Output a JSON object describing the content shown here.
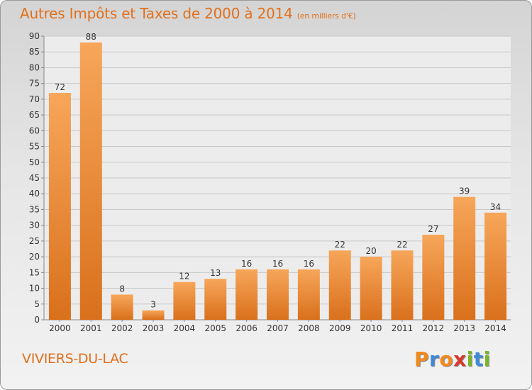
{
  "header": {
    "title": "Autres Impôts et Taxes de 2000 à 2014",
    "subtitle": "(en milliers d'€)"
  },
  "footer": {
    "commune": "VIVIERS-DU-LAC",
    "logo_text": "Proxiti",
    "logo_colors": [
      "#f08a1e",
      "#3f8ad8",
      "#f08a1e",
      "#d8382a",
      "#7ab52a",
      "#3f8ad8",
      "#7ab52a"
    ]
  },
  "colors": {
    "bar_top": "#f7a65a",
    "bar_bottom": "#d9701c",
    "title": "#e0701c",
    "grid": "#c8c8c8"
  },
  "chart_data": {
    "type": "bar",
    "categories": [
      "2000",
      "2001",
      "2002",
      "2003",
      "2004",
      "2005",
      "2006",
      "2007",
      "2008",
      "2009",
      "2010",
      "2011",
      "2012",
      "2013",
      "2014"
    ],
    "values": [
      72,
      88,
      8,
      3,
      12,
      13,
      16,
      16,
      16,
      22,
      20,
      22,
      27,
      39,
      34
    ],
    "ylim": [
      0,
      90
    ],
    "yticks": [
      0,
      5,
      10,
      15,
      20,
      25,
      30,
      35,
      40,
      45,
      50,
      55,
      60,
      65,
      70,
      75,
      80,
      85,
      90
    ],
    "grid": true,
    "data_labels": true,
    "legend": "none"
  }
}
